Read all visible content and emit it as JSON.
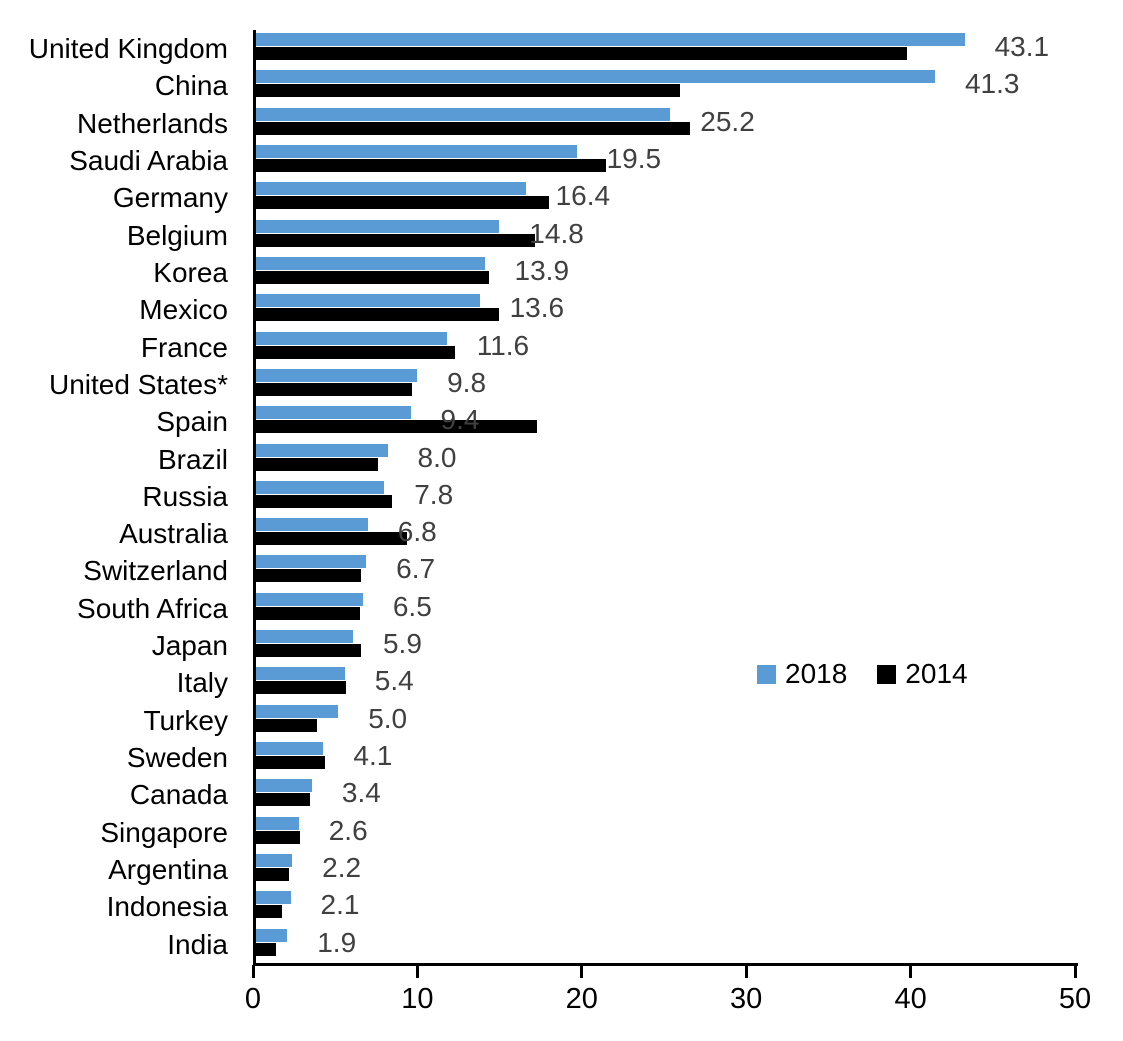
{
  "chart_data": {
    "type": "bar",
    "orientation": "horizontal",
    "title": "",
    "xlabel": "",
    "ylabel": "",
    "xlim": [
      0,
      50
    ],
    "x_ticks": [
      0,
      10,
      20,
      30,
      40,
      50
    ],
    "grid": false,
    "legend": {
      "position": "middle-right",
      "entries": [
        "2018",
        "2014"
      ]
    },
    "categories": [
      "United Kingdom",
      "China",
      "Netherlands",
      "Saudi Arabia",
      "Germany",
      "Belgium",
      "Korea",
      "Mexico",
      "France",
      "United States*",
      "Spain",
      "Brazil",
      "Russia",
      "Australia",
      "Switzerland",
      "South Africa",
      "Japan",
      "Italy",
      "Turkey",
      "Sweden",
      "Canada",
      "Singapore",
      "Argentina",
      "Indonesia",
      "India"
    ],
    "series": [
      {
        "name": "2018",
        "color": "#5B9BD5",
        "values": [
          43.1,
          41.3,
          25.2,
          19.5,
          16.4,
          14.8,
          13.9,
          13.6,
          11.6,
          9.8,
          9.4,
          8.0,
          7.8,
          6.8,
          6.7,
          6.5,
          5.9,
          5.4,
          5.0,
          4.1,
          3.4,
          2.6,
          2.2,
          2.1,
          1.9
        ]
      },
      {
        "name": "2014",
        "color": "#000000",
        "values": [
          39.6,
          25.8,
          26.4,
          21.3,
          17.8,
          17.0,
          14.2,
          14.8,
          12.1,
          9.5,
          17.1,
          7.4,
          8.3,
          9.2,
          6.4,
          6.3,
          6.4,
          5.5,
          3.7,
          4.2,
          3.3,
          2.7,
          2.0,
          1.6,
          1.2
        ]
      }
    ],
    "data_labels": [
      "43.1",
      "41.3",
      "25.2",
      "19.5",
      "16.4",
      "14.8",
      "13.9",
      "13.6",
      "11.6",
      "9.8",
      "9.4",
      "8.0",
      "7.8",
      "6.8",
      "6.7",
      "6.5",
      "5.9",
      "5.4",
      "5.0",
      "4.1",
      "3.4",
      "2.6",
      "2.2",
      "2.1",
      "1.9"
    ],
    "data_labels_series": "2018",
    "colors": {
      "background": "#ffffff",
      "axis": "#000000",
      "data_label_text": "#404040",
      "category_text": "#000000"
    }
  }
}
